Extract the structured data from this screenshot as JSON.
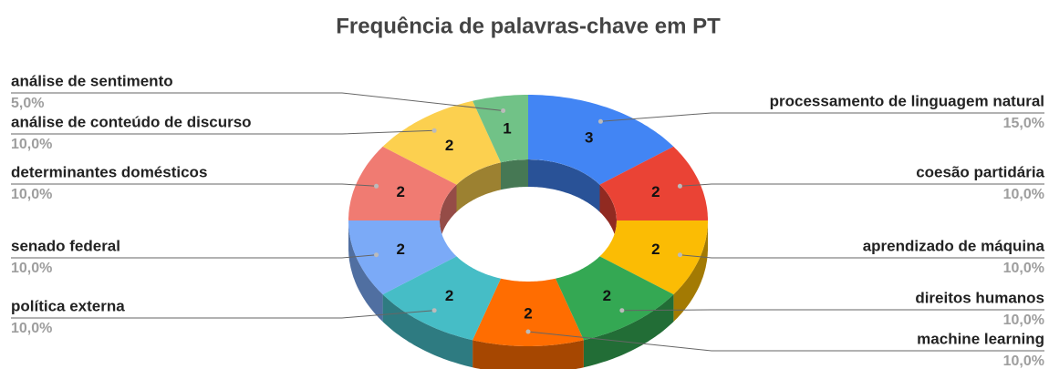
{
  "chart_data": {
    "type": "pie",
    "donut": true,
    "3d": true,
    "title": "Frequência de palavras-chave em PT",
    "categories": [
      "processamento de linguagem natural",
      "coesão partidária",
      "aprendizado de máquina",
      "direitos humanos",
      "machine learning",
      "política externa",
      "senado federal",
      "determinantes domésticos",
      "análise de conteúdo de discurso",
      "análise de sentimento"
    ],
    "values": [
      3,
      2,
      2,
      2,
      2,
      2,
      2,
      2,
      2,
      1
    ],
    "percent_labels": [
      "15,0%",
      "10,0%",
      "10,0%",
      "10,0%",
      "10,0%",
      "10,0%",
      "10,0%",
      "10,0%",
      "10,0%",
      "5,0%"
    ],
    "colors": [
      "#4285f4",
      "#ea4335",
      "#fbbc04",
      "#34a853",
      "#ff6d01",
      "#46bdc6",
      "#7baaf7",
      "#f07b72",
      "#fcd04f",
      "#71c287"
    ]
  }
}
